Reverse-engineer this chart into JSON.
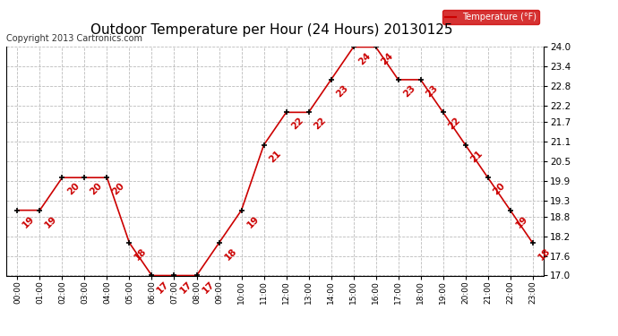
{
  "title": "Outdoor Temperature per Hour (24 Hours) 20130125",
  "copyright": "Copyright 2013 Cartronics.com",
  "legend_label": "Temperature (°F)",
  "hours": [
    "00:00",
    "01:00",
    "02:00",
    "03:00",
    "04:00",
    "05:00",
    "06:00",
    "07:00",
    "08:00",
    "09:00",
    "10:00",
    "11:00",
    "12:00",
    "13:00",
    "14:00",
    "15:00",
    "16:00",
    "17:00",
    "18:00",
    "19:00",
    "20:00",
    "21:00",
    "22:00",
    "23:00"
  ],
  "temperatures": [
    19,
    19,
    20,
    20,
    20,
    18,
    17,
    17,
    17,
    18,
    19,
    21,
    22,
    22,
    23,
    24,
    24,
    23,
    23,
    22,
    21,
    20,
    19,
    18
  ],
  "ylim_min": 17.0,
  "ylim_max": 24.0,
  "yticks": [
    17.0,
    17.6,
    18.2,
    18.8,
    19.3,
    19.9,
    20.5,
    21.1,
    21.7,
    22.2,
    22.8,
    23.4,
    24.0
  ],
  "line_color": "#cc0000",
  "marker_color": "#000000",
  "label_color": "#cc0000",
  "grid_color": "#bbbbbb",
  "bg_color": "#ffffff",
  "title_fontsize": 11,
  "label_fontsize": 7.5,
  "copyright_fontsize": 7,
  "legend_bg": "#cc0000",
  "legend_fg": "#ffffff"
}
